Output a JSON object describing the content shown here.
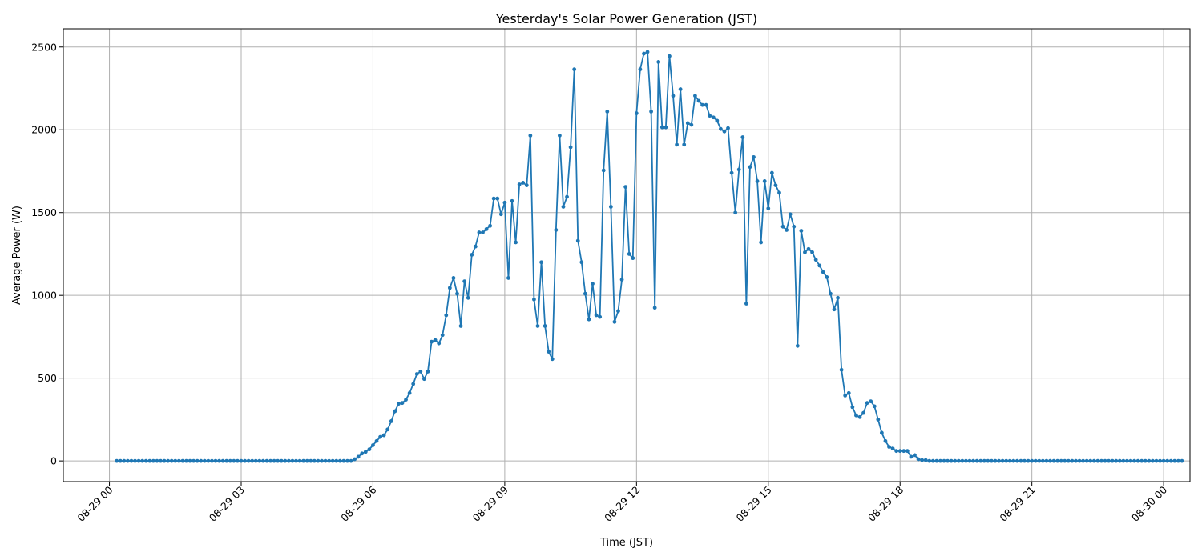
{
  "chart_data": {
    "type": "line",
    "title": "Yesterday's Solar Power Generation (JST)",
    "xlabel": "Time (JST)",
    "ylabel": "Average Power (W)",
    "grid": true,
    "legend": "none",
    "line_color": "#1f77b4",
    "x_ticks": [
      "08-29 00",
      "08-29 03",
      "08-29 06",
      "08-29 09",
      "08-29 12",
      "08-29 15",
      "08-29 18",
      "08-29 21",
      "08-30 00"
    ],
    "y_ticks": [
      "0",
      "500",
      "1000",
      "1500",
      "2000",
      "2500"
    ],
    "xlim_hours": [
      -1.05,
      24.6
    ],
    "ylim": [
      -125,
      2610
    ],
    "x_start": "08-29 00:10",
    "x_step_minutes": 5,
    "values": [
      0,
      0,
      0,
      0,
      0,
      0,
      0,
      0,
      0,
      0,
      0,
      0,
      0,
      0,
      0,
      0,
      0,
      0,
      0,
      0,
      0,
      0,
      0,
      0,
      0,
      0,
      0,
      0,
      0,
      0,
      0,
      0,
      0,
      0,
      0,
      0,
      0,
      0,
      0,
      0,
      0,
      0,
      0,
      0,
      0,
      0,
      0,
      0,
      0,
      0,
      0,
      0,
      0,
      0,
      0,
      0,
      0,
      0,
      0,
      0,
      0,
      0,
      0,
      0,
      0,
      10,
      25,
      45,
      55,
      70,
      95,
      120,
      145,
      155,
      190,
      240,
      300,
      345,
      350,
      370,
      410,
      465,
      525,
      540,
      495,
      540,
      720,
      730,
      710,
      760,
      880,
      1045,
      1105,
      1010,
      815,
      1085,
      985,
      1245,
      1295,
      1380,
      1380,
      1400,
      1420,
      1585,
      1585,
      1490,
      1560,
      1105,
      1570,
      1320,
      1670,
      1680,
      1665,
      1965,
      975,
      815,
      1200,
      815,
      660,
      615,
      1395,
      1965,
      1535,
      1595,
      1895,
      2365,
      1330,
      1200,
      1010,
      855,
      1070,
      880,
      870,
      1755,
      2110,
      1535,
      840,
      905,
      1095,
      1655,
      1250,
      1225,
      2100,
      2365,
      2460,
      2470,
      2110,
      925,
      2410,
      2015,
      2015,
      2445,
      2205,
      1910,
      2245,
      1910,
      2040,
      2030,
      2205,
      2175,
      2150,
      2150,
      2085,
      2075,
      2055,
      2005,
      1990,
      2010,
      1740,
      1500,
      1760,
      1955,
      950,
      1775,
      1835,
      1690,
      1320,
      1690,
      1525,
      1740,
      1665,
      1620,
      1415,
      1395,
      1490,
      1415,
      695,
      1390,
      1260,
      1280,
      1260,
      1215,
      1180,
      1140,
      1110,
      1010,
      915,
      985,
      550,
      395,
      410,
      325,
      275,
      265,
      290,
      350,
      360,
      330,
      250,
      170,
      120,
      85,
      75,
      60,
      60,
      60,
      60,
      25,
      35,
      10,
      5,
      5,
      0,
      0,
      0,
      0,
      0,
      0,
      0,
      0,
      0,
      0,
      0,
      0,
      0,
      0,
      0,
      0,
      0,
      0,
      0,
      0,
      0,
      0,
      0,
      0,
      0,
      0,
      0,
      0,
      0,
      0,
      0,
      0,
      0,
      0,
      0,
      0,
      0,
      0,
      0,
      0,
      0,
      0,
      0,
      0,
      0,
      0,
      0,
      0,
      0,
      0,
      0,
      0,
      0,
      0,
      0,
      0,
      0,
      0,
      0,
      0,
      0,
      0,
      0,
      0,
      0,
      0,
      0,
      0,
      0,
      0
    ]
  }
}
